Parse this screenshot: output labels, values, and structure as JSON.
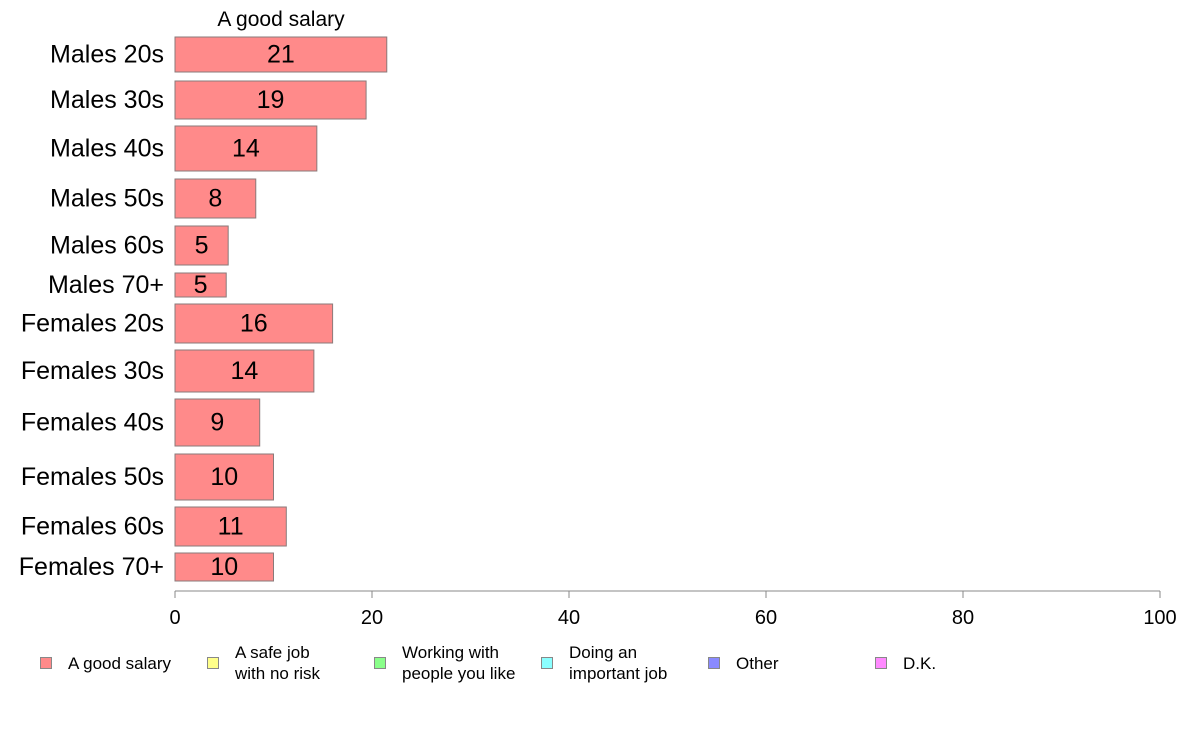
{
  "chart_data": {
    "type": "bar",
    "orientation": "horizontal",
    "title": "A good salary",
    "categories": [
      "Males 20s",
      "Males 30s",
      "Males 40s",
      "Males 50s",
      "Males 60s",
      "Males 70+",
      "Females 20s",
      "Females 30s",
      "Females 40s",
      "Females 50s",
      "Females 60s",
      "Females 70+"
    ],
    "series": [
      {
        "name": "A good salary",
        "color": "#ff8a8a",
        "values": [
          21.5,
          19.4,
          14.4,
          8.2,
          5.4,
          5.2,
          16.0,
          14.1,
          8.6,
          10.0,
          11.3,
          10.0
        ],
        "labels": [
          "21",
          "19",
          "14",
          "8",
          "5",
          "5",
          "16",
          "14",
          "9",
          "10",
          "11",
          "10"
        ]
      }
    ],
    "xlim": [
      0,
      100
    ],
    "xticks": [
      0,
      20,
      40,
      60,
      80,
      100
    ],
    "xtick_labels": [
      "0",
      "20",
      "40",
      "60",
      "80",
      "100"
    ],
    "grid": false,
    "legend_position": "bottom"
  },
  "legend": [
    {
      "label": "A good salary",
      "color": "#ff8a8a"
    },
    {
      "label": "A safe job\nwith no risk",
      "color": "#ffff8a"
    },
    {
      "label": "Working with\npeople you like",
      "color": "#8aff8a"
    },
    {
      "label": "Doing an\nimportant job",
      "color": "#8affff"
    },
    {
      "label": "Other",
      "color": "#8a8aff"
    },
    {
      "label": "D.K.",
      "color": "#ff8aff"
    }
  ]
}
